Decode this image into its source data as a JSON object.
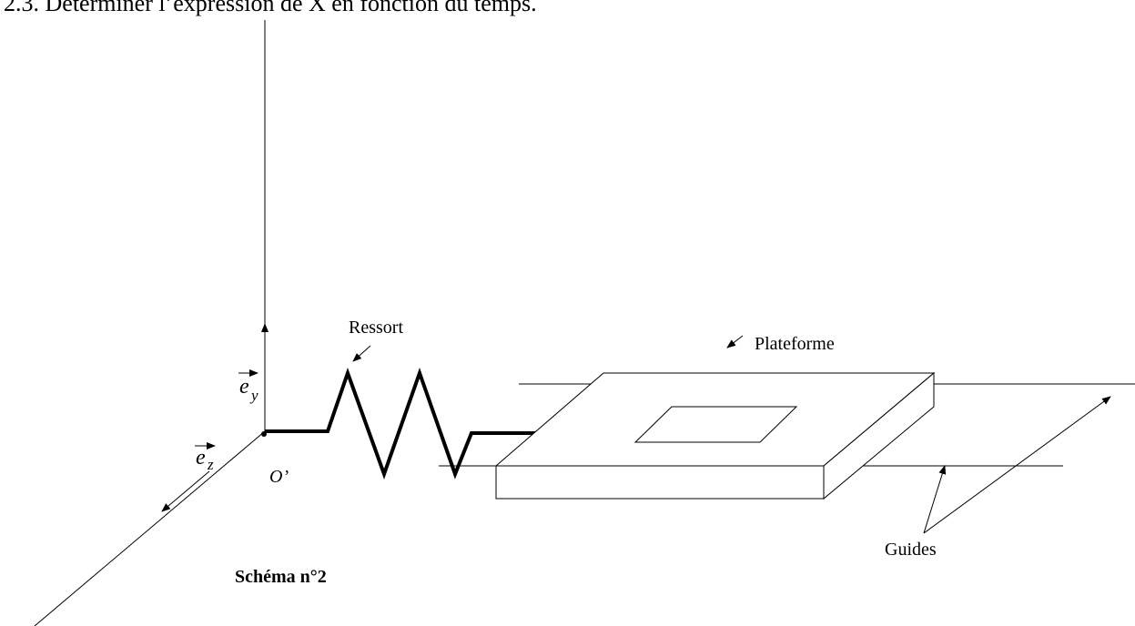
{
  "heading": "2.3.  Déterminer l’expression de X en fonction du temps.",
  "labels": {
    "spring": "Ressort",
    "platform": "Plateforme",
    "guides": "Guides",
    "caption": "Schéma n°2",
    "origin": "O’",
    "ey": {
      "base": "e",
      "sub": "y"
    },
    "ez": {
      "base": "e",
      "sub": "z"
    }
  }
}
